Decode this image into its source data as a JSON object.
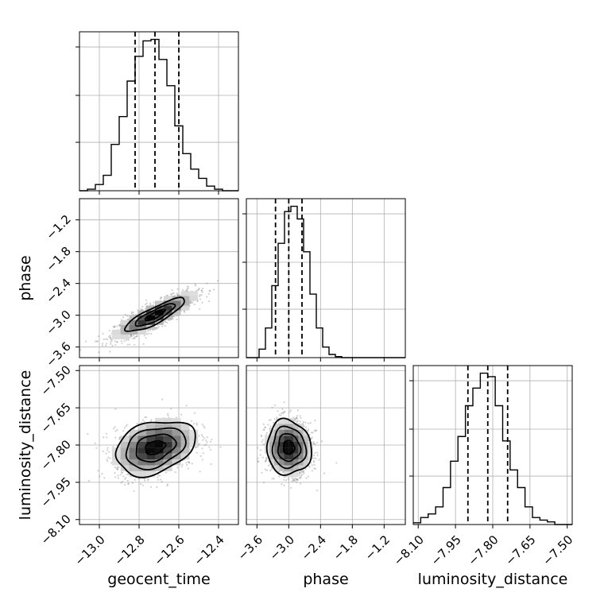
{
  "chart_data": {
    "type": "corner",
    "parameters": [
      {
        "key": "geocent_time",
        "label": "geocent_time",
        "range": [
          -13.1,
          -12.3
        ],
        "ticks": [
          -13.0,
          -12.8,
          -12.6,
          -12.4
        ],
        "tick_labels": [
          "−13.0",
          "−12.8",
          "−12.6",
          "−12.4"
        ],
        "quantiles": [
          -12.82,
          -12.72,
          -12.6
        ],
        "histogram": {
          "edges": [
            -13.1,
            -13.06,
            -13.02,
            -12.98,
            -12.94,
            -12.9,
            -12.86,
            -12.82,
            -12.78,
            -12.74,
            -12.7,
            -12.66,
            -12.62,
            -12.58,
            -12.54,
            -12.5,
            -12.46,
            -12.42,
            -12.38,
            -12.34,
            -12.3
          ],
          "counts": [
            0,
            1,
            4,
            10,
            30,
            48,
            71,
            87,
            97,
            98,
            85,
            68,
            42,
            24,
            14,
            8,
            3,
            1,
            0,
            0
          ]
        }
      },
      {
        "key": "phase",
        "label": "phase",
        "range": [
          -3.8,
          -0.8
        ],
        "ticks": [
          -3.6,
          -3.0,
          -2.4,
          -1.8,
          -1.2
        ],
        "tick_labels": [
          "−3.6",
          "−3.0",
          "−2.4",
          "−1.8",
          "−1.2"
        ],
        "quantiles": [
          -3.25,
          -3.0,
          -2.75
        ],
        "histogram": {
          "edges": [
            -3.8,
            -3.68,
            -3.56,
            -3.44,
            -3.32,
            -3.2,
            -3.08,
            -2.96,
            -2.84,
            -2.72,
            -2.6,
            -2.48,
            -2.36,
            -2.24,
            -2.12,
            -2.0,
            -1.88,
            -1.76,
            -1.64,
            -1.52,
            -1.4,
            -1.28,
            -1.16,
            -1.04,
            -0.92,
            -0.8
          ],
          "counts": [
            0,
            0,
            8,
            28,
            68,
            108,
            138,
            143,
            131,
            100,
            60,
            28,
            10,
            3,
            1,
            0,
            0,
            0,
            0,
            0,
            0,
            0,
            0,
            0,
            0
          ]
        }
      },
      {
        "key": "luminosity_distance",
        "label": "luminosity_distance",
        "range": [
          -8.12,
          -7.48
        ],
        "ticks": [
          -8.1,
          -7.95,
          -7.8,
          -7.65,
          -7.5
        ],
        "tick_labels": [
          "−8.10",
          "−7.95",
          "−7.80",
          "−7.65",
          "−7.50"
        ],
        "quantiles": [
          -7.9,
          -7.82,
          -7.74
        ],
        "histogram": {
          "edges": [
            -8.12,
            -8.09,
            -8.06,
            -8.03,
            -8.0,
            -7.97,
            -7.94,
            -7.91,
            -7.88,
            -7.85,
            -7.82,
            -7.79,
            -7.76,
            -7.73,
            -7.7,
            -7.67,
            -7.64,
            -7.61,
            -7.58,
            -7.55,
            -7.52,
            -7.48
          ],
          "counts": [
            2,
            8,
            12,
            20,
            42,
            72,
            100,
            135,
            155,
            172,
            168,
            135,
            95,
            62,
            42,
            20,
            8,
            5,
            3,
            0,
            0
          ]
        }
      }
    ],
    "pairs": [
      {
        "x": "geocent_time",
        "y": "phase",
        "center": [
          -12.72,
          -3.0
        ],
        "correlation": 0.85,
        "sigma": [
          0.1,
          0.21
        ],
        "contour_levels": [
          0.5,
          1.0,
          1.5
        ]
      },
      {
        "x": "geocent_time",
        "y": "luminosity_distance",
        "center": [
          -12.72,
          -7.81
        ],
        "correlation": 0.3,
        "sigma": [
          0.1,
          0.055
        ],
        "contour_levels": [
          0.5,
          1.0,
          1.5,
          2.0
        ]
      },
      {
        "x": "phase",
        "y": "luminosity_distance",
        "center": [
          -3.0,
          -7.81
        ],
        "correlation": -0.05,
        "sigma": [
          0.21,
          0.055
        ],
        "contour_levels": [
          0.5,
          1.0,
          1.5,
          2.0
        ]
      }
    ],
    "grid": true
  }
}
